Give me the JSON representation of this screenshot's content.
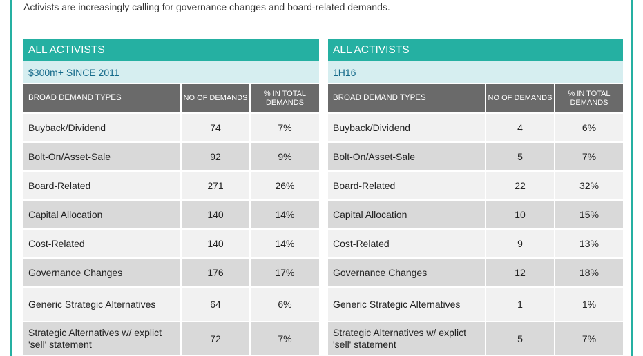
{
  "intro": "Activists are increasingly calling for governance changes and board-related demands.",
  "columns": {
    "type": "BROAD DEMAND TYPES",
    "count": "NO OF DEMANDS",
    "pct": "% IN TOTAL DEMANDS"
  },
  "tables": [
    {
      "title": "ALL ACTIVISTS",
      "subtitle": "$300m+ SINCE 2011",
      "rows": [
        {
          "type": "Buyback/Dividend",
          "count": "74",
          "pct": "7%"
        },
        {
          "type": "Bolt-On/Asset-Sale",
          "count": "92",
          "pct": "9%"
        },
        {
          "type": "Board-Related",
          "count": "271",
          "pct": "26%"
        },
        {
          "type": "Capital Allocation",
          "count": "140",
          "pct": "14%"
        },
        {
          "type": "Cost-Related",
          "count": "140",
          "pct": "14%"
        },
        {
          "type": "Governance Changes",
          "count": "176",
          "pct": "17%"
        },
        {
          "type": "Generic Strategic Alternatives",
          "count": "64",
          "pct": "6%"
        },
        {
          "type": "Strategic Alternatives w/ explict 'sell' statement",
          "count": "72",
          "pct": "7%"
        }
      ]
    },
    {
      "title": "ALL ACTIVISTS",
      "subtitle": "1H16",
      "rows": [
        {
          "type": "Buyback/Dividend",
          "count": "4",
          "pct": "6%"
        },
        {
          "type": "Bolt-On/Asset-Sale",
          "count": "5",
          "pct": "7%"
        },
        {
          "type": "Board-Related",
          "count": "22",
          "pct": "32%"
        },
        {
          "type": "Capital Allocation",
          "count": "10",
          "pct": "15%"
        },
        {
          "type": "Cost-Related",
          "count": "9",
          "pct": "13%"
        },
        {
          "type": "Governance Changes",
          "count": "12",
          "pct": "18%"
        },
        {
          "type": "Generic Strategic Alternatives",
          "count": "1",
          "pct": "1%"
        },
        {
          "type": "Strategic Alternatives w/ explict 'sell' statement",
          "count": "5",
          "pct": "7%"
        }
      ]
    }
  ]
}
